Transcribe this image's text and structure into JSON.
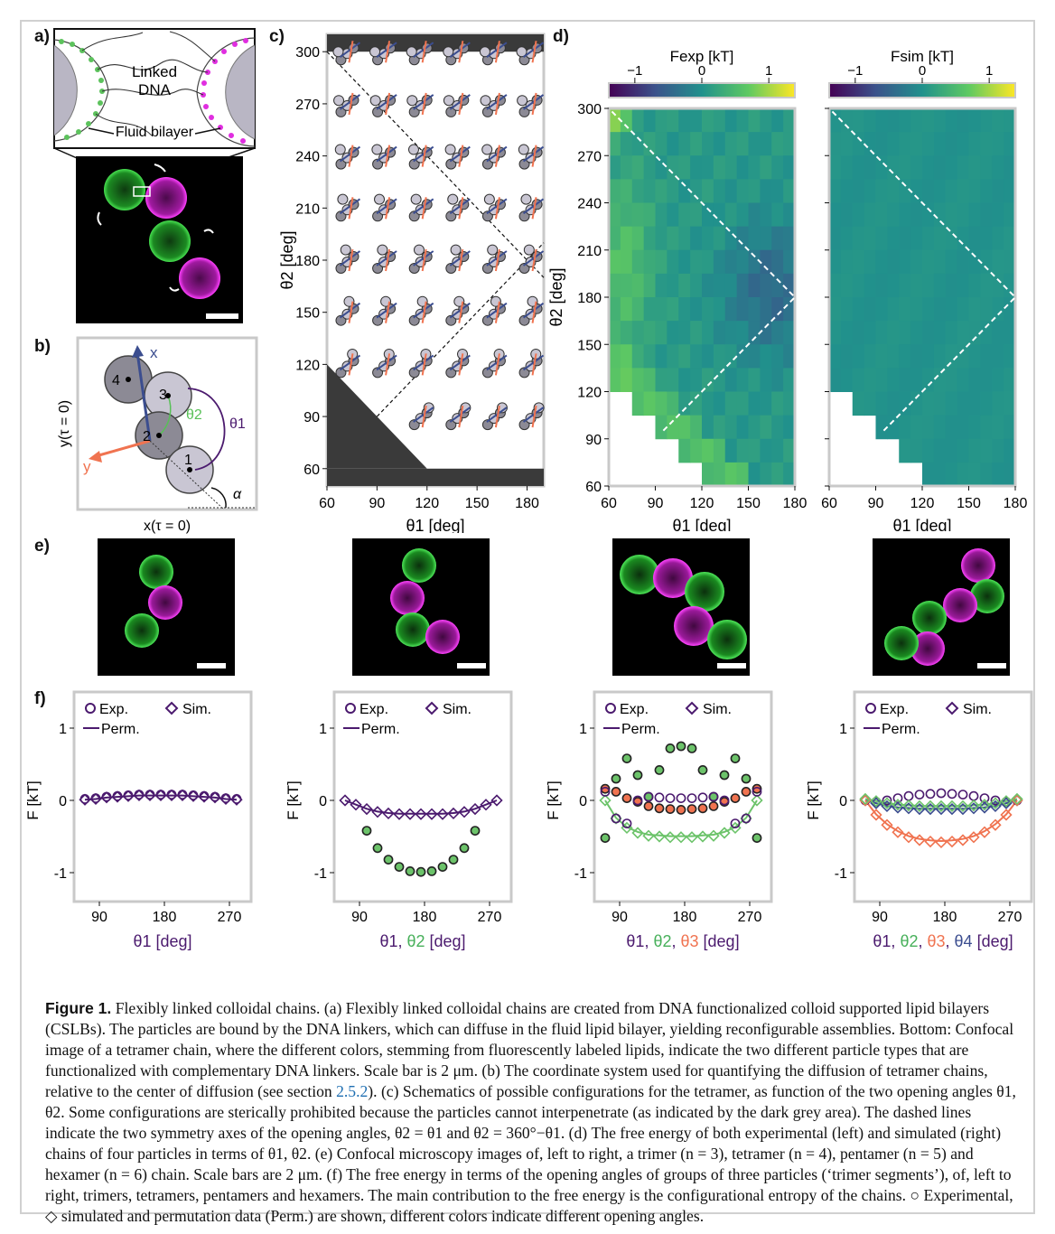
{
  "panel_labels": {
    "a": "a)",
    "b": "b)",
    "c": "c)",
    "d": "d)",
    "e": "e)",
    "f": "f)"
  },
  "panel_a": {
    "linked_dna_1": "Linked",
    "linked_dna_2": "DNA",
    "fluid_bilayer": "Fluid bilayer"
  },
  "panel_b": {
    "x_axis": "x",
    "y_axis": "y",
    "bottom_label": "x(τ = 0)",
    "side_label": "y(τ = 0)",
    "theta1": "θ1",
    "theta2": "θ2",
    "alpha": "α",
    "particles": [
      "1",
      "2",
      "3",
      "4"
    ]
  },
  "panel_c": {
    "xlabel": "θ1 [deg]",
    "ylabel": "θ2 [deg]",
    "xticks": [
      "60",
      "90",
      "120",
      "150",
      "180"
    ],
    "yticks": [
      "60",
      "90",
      "120",
      "150",
      "180",
      "210",
      "240",
      "270",
      "300"
    ]
  },
  "panel_d": {
    "left_title": "Fexp [kT]",
    "right_title": "Fsim [kT]",
    "cbar_ticks": [
      "−1",
      "0",
      "1"
    ],
    "xlabel": "θ1 [deg]",
    "ylabel": "θ2 [deg]",
    "xticks": [
      "60",
      "90",
      "120",
      "150",
      "180"
    ],
    "yticks": [
      "60",
      "90",
      "120",
      "150",
      "180",
      "210",
      "240",
      "270",
      "300"
    ],
    "colormap": [
      "#440154",
      "#3b528b",
      "#21918c",
      "#5ec962",
      "#fde725"
    ]
  },
  "panel_f": {
    "ylabel": "F [kT]",
    "yticks": [
      "-1",
      "0",
      "1"
    ],
    "xticks": [
      "90",
      "180",
      "270"
    ],
    "legend": {
      "exp": "Exp.",
      "sim": "Sim.",
      "perm": "Perm."
    },
    "xlabels": [
      [
        {
          "t": "θ1",
          "c": "#4b1a6e"
        },
        {
          "t": " [deg]",
          "c": "#4b1a6e"
        }
      ],
      [
        {
          "t": "θ1",
          "c": "#4b1a6e"
        },
        {
          "t": ", ",
          "c": "#4b1a6e"
        },
        {
          "t": "θ2",
          "c": "#47b05a"
        },
        {
          "t": " [deg]",
          "c": "#4b1a6e"
        }
      ],
      [
        {
          "t": "θ1",
          "c": "#4b1a6e"
        },
        {
          "t": ", ",
          "c": "#4b1a6e"
        },
        {
          "t": "θ2",
          "c": "#47b05a"
        },
        {
          "t": ", ",
          "c": "#4b1a6e"
        },
        {
          "t": "θ3",
          "c": "#f07350"
        },
        {
          "t": " [deg]",
          "c": "#4b1a6e"
        }
      ],
      [
        {
          "t": "θ1",
          "c": "#4b1a6e"
        },
        {
          "t": ", ",
          "c": "#4b1a6e"
        },
        {
          "t": "θ2",
          "c": "#47b05a"
        },
        {
          "t": ", ",
          "c": "#4b1a6e"
        },
        {
          "t": "θ3",
          "c": "#f07350"
        },
        {
          "t": ", ",
          "c": "#4b1a6e"
        },
        {
          "t": "θ4",
          "c": "#3b4d8f"
        },
        {
          "t": " [deg]",
          "c": "#4b1a6e"
        }
      ]
    ],
    "colors": {
      "theta1": "#4b1a6e",
      "theta2": "#6cc36a",
      "theta3": "#f07350",
      "theta4": "#3b4d8f"
    }
  },
  "chart_data": [
    {
      "type": "scatter",
      "panel": "f-trimer",
      "x": [
        70,
        85,
        100,
        115,
        130,
        145,
        160,
        175,
        190,
        205,
        220,
        235,
        250,
        265,
        280
      ],
      "series": [
        {
          "name": "θ1 Exp.",
          "y": [
            0.02,
            0.03,
            0.05,
            0.06,
            0.07,
            0.08,
            0.08,
            0.08,
            0.08,
            0.08,
            0.07,
            0.06,
            0.05,
            0.03,
            0.02
          ]
        },
        {
          "name": "θ1 Sim.",
          "y": [
            0.01,
            0.02,
            0.04,
            0.05,
            0.06,
            0.07,
            0.07,
            0.07,
            0.07,
            0.07,
            0.06,
            0.05,
            0.04,
            0.02,
            0.01
          ]
        }
      ],
      "xlabel": "θ1 [deg]",
      "ylabel": "F [kT]",
      "ylim": [
        -1.4,
        1.5
      ]
    },
    {
      "type": "scatter",
      "panel": "f-tetramer",
      "x": [
        70,
        85,
        100,
        115,
        130,
        145,
        160,
        175,
        190,
        205,
        220,
        235,
        250,
        265,
        280
      ],
      "series": [
        {
          "name": "θ1 Sim.",
          "y": [
            0,
            -0.06,
            -0.12,
            -0.16,
            -0.18,
            -0.19,
            -0.19,
            -0.19,
            -0.19,
            -0.19,
            -0.18,
            -0.16,
            -0.12,
            -0.06,
            0
          ]
        },
        {
          "name": "θ2 Exp.",
          "y": [
            null,
            null,
            -0.42,
            -0.66,
            -0.82,
            -0.92,
            -0.98,
            -0.99,
            -0.98,
            -0.92,
            -0.82,
            -0.66,
            -0.42,
            null,
            null
          ]
        }
      ],
      "xlabel": "θ1, θ2 [deg]",
      "ylabel": "F [kT]",
      "ylim": [
        -1.4,
        1.5
      ]
    },
    {
      "type": "scatter",
      "panel": "f-pentamer",
      "x": [
        70,
        85,
        100,
        115,
        130,
        145,
        160,
        175,
        190,
        205,
        220,
        235,
        250,
        265,
        280
      ],
      "series": [
        {
          "name": "θ2 Exp.",
          "y": [
            -0.52,
            0.3,
            0.58,
            0.35,
            0.05,
            0.42,
            0.72,
            0.75,
            0.72,
            0.42,
            0.05,
            0.35,
            0.58,
            0.3,
            -0.52
          ]
        },
        {
          "name": "θ2 Sim.",
          "y": [
            0,
            -0.25,
            -0.38,
            -0.45,
            -0.49,
            -0.5,
            -0.51,
            -0.51,
            -0.51,
            -0.5,
            -0.49,
            -0.45,
            -0.38,
            -0.25,
            0
          ]
        },
        {
          "name": "θ3 Exp.",
          "y": [
            0.16,
            0.12,
            0.03,
            -0.02,
            -0.08,
            -0.11,
            -0.12,
            -0.13,
            -0.12,
            -0.11,
            -0.08,
            -0.02,
            0.03,
            0.12,
            0.16
          ]
        },
        {
          "name": "θ1 Exp.",
          "y": [
            0.12,
            -0.25,
            -0.32,
            0,
            0.05,
            0.04,
            0.03,
            0.03,
            0.03,
            0.04,
            0.05,
            0,
            -0.32,
            -0.25,
            0.12
          ]
        }
      ],
      "xlabel": "θ1, θ2, θ3 [deg]",
      "ylabel": "F [kT]",
      "ylim": [
        -1.4,
        1.5
      ]
    },
    {
      "type": "scatter",
      "panel": "f-hexamer",
      "x": [
        70,
        85,
        100,
        115,
        130,
        145,
        160,
        175,
        190,
        205,
        220,
        235,
        250,
        265,
        280
      ],
      "series": [
        {
          "name": "θ1 Exp.",
          "y": [
            0,
            -0.02,
            0,
            0.03,
            0.06,
            0.08,
            0.09,
            0.1,
            0.09,
            0.08,
            0.06,
            0.03,
            0,
            -0.02,
            0
          ]
        },
        {
          "name": "θ4 Sim.",
          "y": [
            0,
            -0.04,
            -0.08,
            -0.1,
            -0.11,
            -0.12,
            -0.12,
            -0.12,
            -0.12,
            -0.12,
            -0.11,
            -0.1,
            -0.08,
            -0.04,
            0
          ]
        },
        {
          "name": "θ3 Sim.",
          "y": [
            0,
            -0.2,
            -0.34,
            -0.44,
            -0.51,
            -0.55,
            -0.57,
            -0.58,
            -0.57,
            -0.55,
            -0.51,
            -0.44,
            -0.34,
            -0.2,
            0
          ]
        },
        {
          "name": "θ2 Sim.",
          "y": [
            0.02,
            -0.01,
            -0.04,
            -0.06,
            -0.07,
            -0.08,
            -0.08,
            -0.08,
            -0.08,
            -0.08,
            -0.07,
            -0.06,
            -0.04,
            -0.01,
            0.02
          ]
        }
      ],
      "xlabel": "θ1, θ2, θ3, θ4 [deg]",
      "ylabel": "F [kT]",
      "ylim": [
        -1.4,
        1.5
      ]
    }
  ],
  "caption": {
    "title": "Figure 1.",
    "text_1": " Flexibly linked colloidal chains. (a) Flexibly linked colloidal chains are created from DNA functionalized colloid supported lipid bilayers (CSLBs). The particles are bound by the DNA linkers, which can diffuse in the fluid lipid bilayer, yielding reconfigurable assemblies. Bottom: Confocal image of a tetramer chain, where the different colors, stemming from fluorescently labeled lipids, indicate the two different particle types that are functionalized with complementary DNA linkers. Scale bar is 2 μm. (b) The coordinate system used for quantifying the diffusion of tetramer chains, relative to the center of diffusion (see section ",
    "link": "2.5.2",
    "text_2": "). (c) Schematics of possible configurations for the tetramer, as function of the two opening angles θ1, θ2. Some configurations are sterically prohibited because the particles cannot interpenetrate (as indicated by the dark grey area). The dashed lines indicate the two symmetry axes of the opening angles, θ2 = θ1 and θ2 = 360°−θ1. (d) The free energy of both experimental (left) and simulated (right) chains of four particles in terms of θ1, θ2. (e) Confocal microscopy images of, left to right, a trimer (n = 3), tetramer (n = 4), pentamer (n = 5) and hexamer (n = 6) chain. Scale bars are 2 μm. (f) The free energy in terms of the opening angles of groups of three particles (‘trimer segments’), of, left to right, trimers, tetramers, pentamers and hexamers. The main contribution to the free energy is the configurational entropy of the chains. ○ Experimental, ◇ simulated and permutation data (Perm.) are shown, different colors indicate different opening angles."
  }
}
